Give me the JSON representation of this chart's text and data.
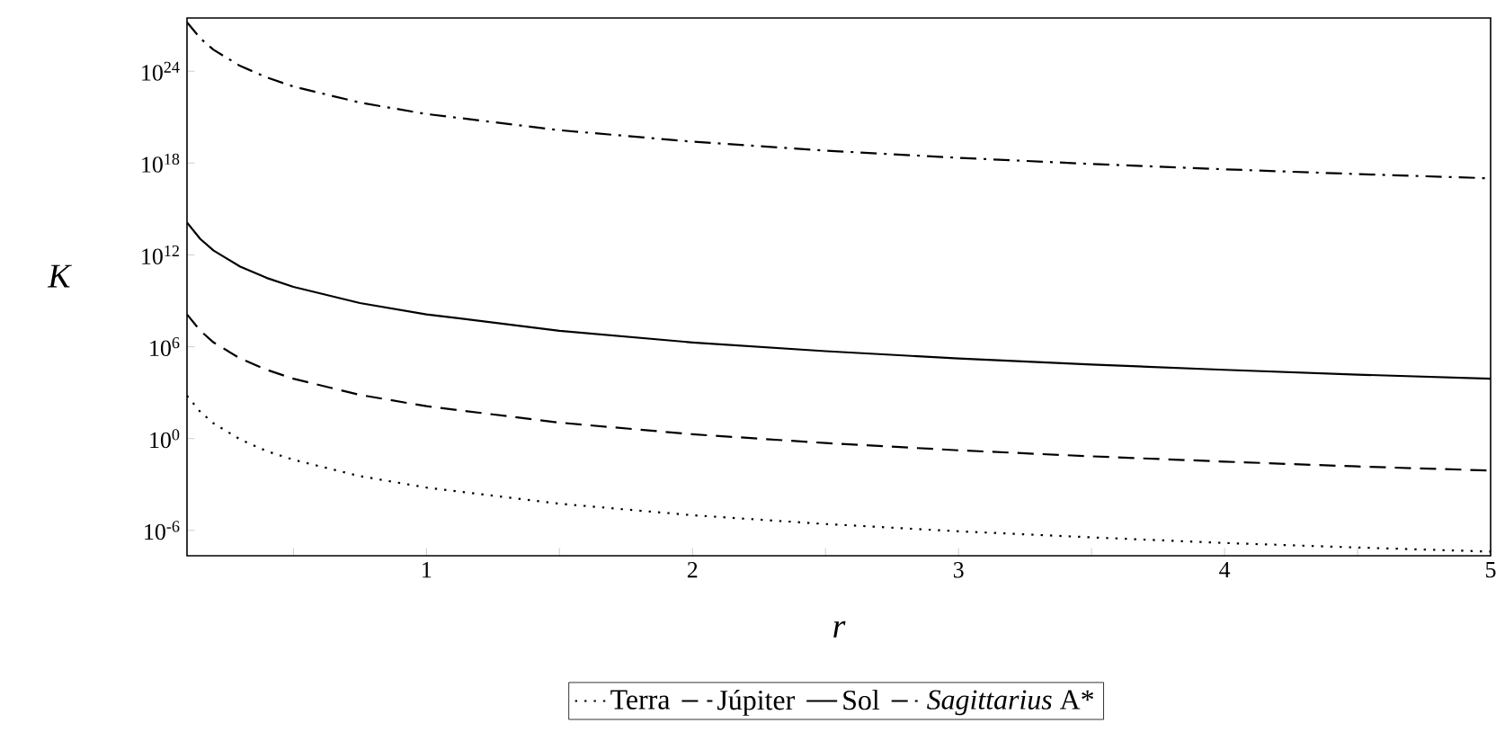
{
  "chart_data": {
    "type": "line",
    "xlabel": "r",
    "ylabel": "K",
    "log": "y",
    "x": [
      0.1,
      0.15,
      0.2,
      0.3,
      0.4,
      0.5,
      0.75,
      1,
      1.5,
      2,
      2.5,
      3,
      3.5,
      4,
      4.5,
      5
    ],
    "series": [
      {
        "name": "Terra",
        "color": "#000000",
        "line_style": "dotted",
        "values": [
          630,
          55,
          9.8,
          0.87,
          0.15,
          0.041,
          0.0035,
          0.00063,
          5.5e-05,
          9.8e-06,
          2.6e-06,
          8.7e-07,
          3.5e-07,
          1.5e-07,
          7.6e-08,
          4.1e-08
        ]
      },
      {
        "name": "Júpiter",
        "color": "#000000",
        "line_style": "dashed",
        "values": [
          130000000.0,
          11000000.0,
          1900000.0,
          170000.0,
          31000.0,
          8100,
          710,
          130,
          11,
          1.9,
          0.51,
          0.17,
          0.069,
          0.031,
          0.015,
          0.0081
        ]
      },
      {
        "name": "Sol",
        "color": "#000000",
        "line_style": "solid",
        "values": [
          130000000000000.0,
          11000000000000.0,
          1900000000000.0,
          170000000000.0,
          31000000000.0,
          8100000000.0,
          710000000.0,
          130000000.0,
          11000000.0,
          1900000.0,
          510000.0,
          170000.0,
          69000.0,
          31000.0,
          15000.0,
          8100
        ]
      },
      {
        "name": "*Sagittarius* A*",
        "color": "#000000",
        "line_style": "dashdot",
        "values": [
          1.6e+27,
          1.4e+26,
          2.5e+25,
          2.2e+24,
          3.9e+23,
          1e+23,
          8.9e+21,
          1.6e+21,
          1.4e+20,
          2.5e+19,
          6.5e+18,
          2.2e+18,
          8.7e+17,
          3.9e+17,
          1.9e+17,
          1e+17
        ]
      }
    ],
    "xlim": [
      0.1,
      5
    ],
    "xticks": [
      {
        "value": 0.5,
        "label": null
      },
      1,
      {
        "value": 1.5,
        "label": null
      },
      2,
      {
        "value": 2.5,
        "label": null
      },
      3,
      {
        "value": 3.5,
        "label": null
      },
      4,
      {
        "value": 4.5,
        "label": null
      },
      5
    ],
    "ylim": [
      2.2e-08,
      3e+27
    ],
    "yticks": [
      {
        "value": 1e-06,
        "label": "10$^{-6}$"
      },
      {
        "value": 1,
        "label": "10$^{0}$"
      },
      {
        "value": 1000000.0,
        "label": "10$^{6}$"
      },
      {
        "value": 1000000000000.0,
        "label": "10$^{12}$"
      },
      {
        "value": 1e+18,
        "label": "10$^{18}$"
      },
      {
        "value": 1e+24,
        "label": "10$^{24}$"
      }
    ],
    "legend": "bottom",
    "grid": false
  }
}
